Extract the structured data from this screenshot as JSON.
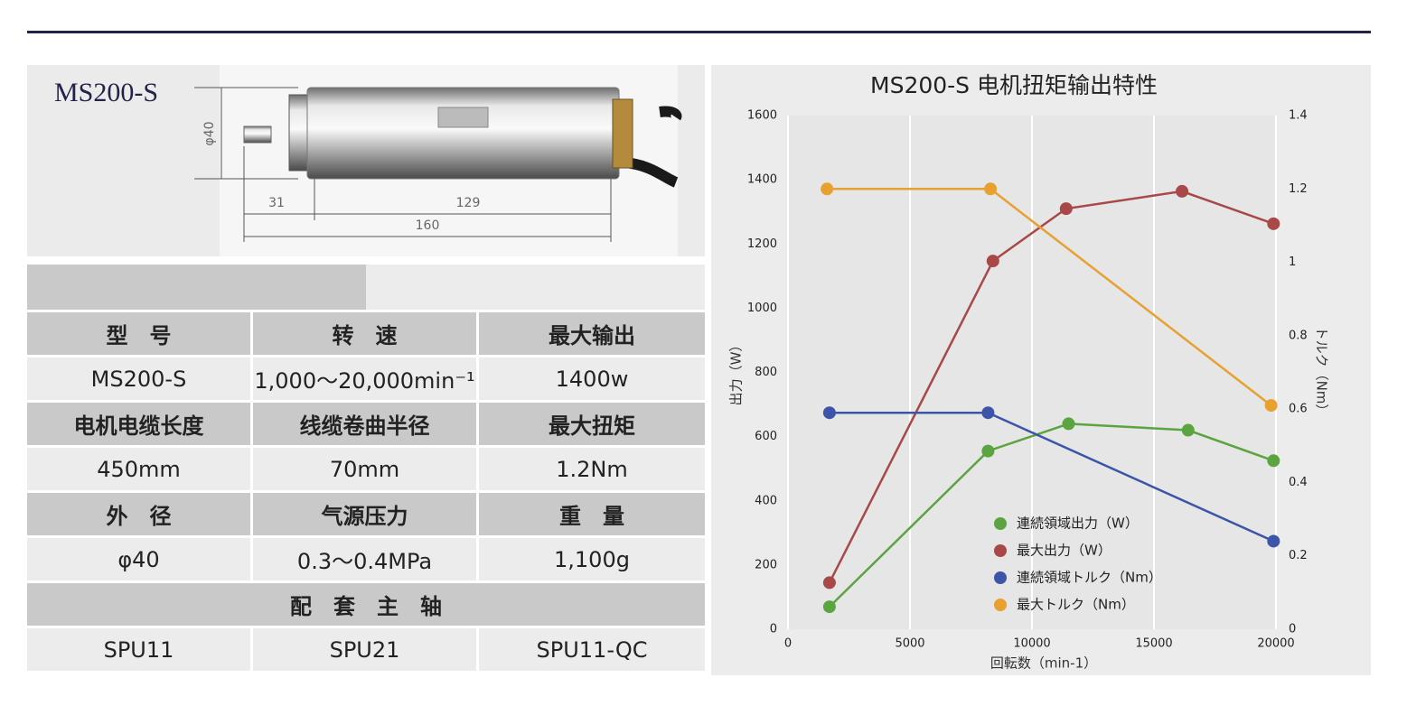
{
  "product": {
    "model": "MS200-S",
    "dimensions": {
      "diameter": "φ40",
      "front": "31",
      "body": "129",
      "total": "160"
    }
  },
  "table": {
    "rows": [
      [
        "型　号",
        "转　速",
        "最大输出"
      ],
      [
        "MS200-S",
        "1,000～20,000min⁻¹",
        "1400w"
      ],
      [
        "电机电缆长度",
        "线缆卷曲半径",
        "最大扭矩"
      ],
      [
        "450mm",
        "70mm",
        "1.2Nm"
      ],
      [
        "外　径",
        "气源压力",
        "重　量"
      ],
      [
        "φ40",
        "0.3～0.4MPa",
        "1,100g"
      ],
      [
        "配　套　主　轴"
      ],
      [
        "SPU11",
        "SPU21",
        "SPU11-QC"
      ]
    ]
  },
  "chart_data": {
    "type": "line",
    "title": "MS200-S  电机扭矩输出特性",
    "x_label": "回転数（min-1）",
    "y_label": "出力（W）",
    "y2_label": "トルク（Nm）",
    "xlim": [
      0,
      20000
    ],
    "xticks": [
      0,
      5000,
      10000,
      15000,
      20000
    ],
    "ylim": [
      0,
      1600
    ],
    "yticks": [
      0,
      200,
      400,
      600,
      800,
      1000,
      1200,
      1400,
      1600
    ],
    "y2lim": [
      0,
      1.4
    ],
    "y2ticks": [
      0,
      0.2,
      0.4,
      0.6,
      0.8,
      1,
      1.2,
      1.4
    ],
    "grid": "x",
    "series": [
      {
        "name": "連続領域出力（W）",
        "color": "#5aa540",
        "x": [
          1700,
          8200,
          11500,
          16400,
          19900
        ],
        "values": [
          70,
          555,
          640,
          620,
          525
        ]
      },
      {
        "name": "最大出力（W）",
        "color": "#a84848",
        "x": [
          1700,
          8400,
          11400,
          16150,
          19900
        ],
        "values": [
          145,
          1147,
          1310,
          1364,
          1263
        ]
      },
      {
        "name": "連続領域トルク（Nm）",
        "color": "#3c55a8",
        "x": [
          1700,
          8200,
          19900
        ],
        "values": [
          0.59,
          0.59,
          0.24
        ],
        "axis": "y2"
      },
      {
        "name": "最大トルク（Nm）",
        "color": "#e8a030",
        "x": [
          1600,
          8300,
          19800
        ],
        "values": [
          1.2,
          1.2,
          0.61
        ],
        "axis": "y2"
      }
    ]
  }
}
